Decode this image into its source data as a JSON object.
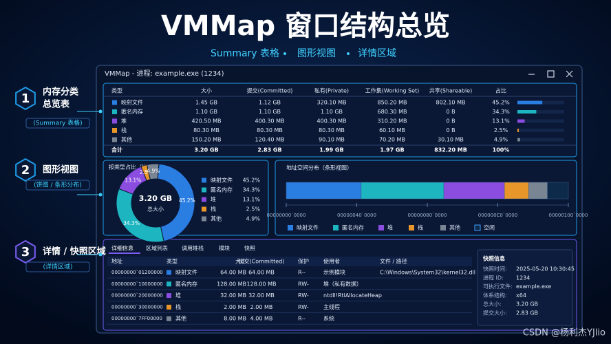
{
  "header": {
    "title": "VMMap 窗口结构总览",
    "subtitle": [
      "Summary 表格",
      "图形视图",
      "详情区域"
    ]
  },
  "palette": {
    "colors": [
      "#2a7de1",
      "#1cb5c0",
      "#8a4de0",
      "#e8962a",
      "#7a8594",
      "#0e2a4a"
    ]
  },
  "sections": [
    {
      "number": "1",
      "title": [
        "内存分类",
        "总览表"
      ],
      "note": "(Summary 表格)"
    },
    {
      "number": "2",
      "title": [
        "图形视图"
      ],
      "note": "(饼图 / 条形分布)"
    },
    {
      "number": "3",
      "title": [
        "详情 / 快照区域"
      ],
      "note": "(详情区域)"
    }
  ],
  "window": {
    "title": "VMMap - 进程: example.exe (1234)"
  },
  "summary": {
    "headers": [
      "类型",
      "大小",
      "提交(Committed)",
      "私有(Private)",
      "工作集(Working Set)",
      "共享(Shareable)",
      "占比"
    ],
    "rows": [
      [
        "映射文件",
        "1.45 GB",
        "1.12 GB",
        "320.10 MB",
        "850.20 MB",
        "802.10 MB",
        "45.2%"
      ],
      [
        "匿名内存",
        "1.10 GB",
        "1.10 GB",
        "1.10 GB",
        "680.30 MB",
        "0 B",
        "34.3%"
      ],
      [
        "堆",
        "420.50 MB",
        "400.30 MB",
        "400.30 MB",
        "310.20 MB",
        "0 B",
        "13.1%"
      ],
      [
        "栈",
        "80.30 MB",
        "80.30 MB",
        "80.30 MB",
        "60.10 MB",
        "0 B",
        "2.5%"
      ],
      [
        "其他",
        "150.20 MB",
        "120.40 MB",
        "90.10 MB",
        "70.20 MB",
        "30.10 MB",
        "4.9%"
      ]
    ],
    "total": [
      "合计",
      "3.20 GB",
      "2.83 GB",
      "1.99 GB",
      "1.97 GB",
      "832.20 MB",
      "100%"
    ],
    "shares": [
      45.2,
      34.3,
      13.1,
      2.5,
      4.9
    ]
  },
  "donut": {
    "title": "按类型占比（饼图）",
    "center_value": "3.20 GB",
    "center_label": "总大小",
    "items": [
      {
        "name": "映射文件",
        "value": 45.2,
        "label": "45.2%"
      },
      {
        "name": "匿名内存",
        "value": 34.3,
        "label": "34.3%"
      },
      {
        "name": "堆",
        "value": 13.1,
        "label": "13.1%"
      },
      {
        "name": "栈",
        "value": 2.5,
        "label": "2.5%"
      },
      {
        "name": "其他",
        "value": 4.9,
        "label": "4.9%"
      }
    ]
  },
  "address": {
    "title": "地址空间分布（条形视图）",
    "xlim": [
      0,
      256
    ],
    "xticks": [
      {
        "value": 0,
        "label": "00000000`0000"
      },
      {
        "value": 64,
        "label": "00000040`0000"
      },
      {
        "value": 128,
        "label": "00000080`0000"
      },
      {
        "value": 192,
        "label": "000000C0`0000"
      },
      {
        "value": 256,
        "label": "00000100`0000"
      }
    ],
    "segments": [
      [
        0,
        68
      ],
      [
        68,
        143
      ],
      [
        143,
        198
      ],
      [
        198,
        220
      ],
      [
        220,
        237
      ],
      [
        237,
        256
      ]
    ],
    "legend": [
      "映射文件",
      "匿名内存",
      "堆",
      "栈",
      "其他",
      "空闲"
    ]
  },
  "details": {
    "tabs": [
      "详细信息",
      "区域列表",
      "调用堆栈",
      "模块",
      "快照"
    ],
    "headers": [
      "地址",
      "类型",
      "大小",
      "提交(Committed)",
      "保护",
      "使用者",
      "文件 / 路径"
    ],
    "rows": [
      [
        "00000000`01200000",
        "映射文件",
        "64.00 MB",
        "64.00 MB",
        "R--",
        "示例模块",
        "C:\\Windows\\System32\\kernel32.dll"
      ],
      [
        "00000000`10000000",
        "匿名内存",
        "128.00 MB",
        "128.00 MB",
        "RW-",
        "堆（私有数据）",
        null
      ],
      [
        "00000000`20000000",
        "堆",
        "32.00 MB",
        "32.00 MB",
        "RW-",
        "ntdll!RtlAllocateHeap",
        null
      ],
      [
        "00000000`30000000",
        "栈",
        "2.00 MB",
        "2.00 MB",
        "RW-",
        "主线程",
        null
      ],
      [
        "00000000`7FF00000",
        "其他",
        "8.00 MB",
        "4.00 MB",
        "R--",
        "系统",
        null
      ]
    ],
    "snapshot": {
      "title": "快照信息",
      "rows": [
        [
          "快照时间:",
          "2025-05-20 10:30:45"
        ],
        [
          "进程 ID:",
          "1234"
        ],
        [
          "可执行文件:",
          "example.exe"
        ],
        [
          "体系结构:",
          "x64"
        ],
        [
          "总大小:",
          "3.20 GB"
        ],
        [
          "提交大小:",
          "2.83 GB"
        ]
      ]
    }
  },
  "watermark": "CSDN @杨利杰YJlio"
}
